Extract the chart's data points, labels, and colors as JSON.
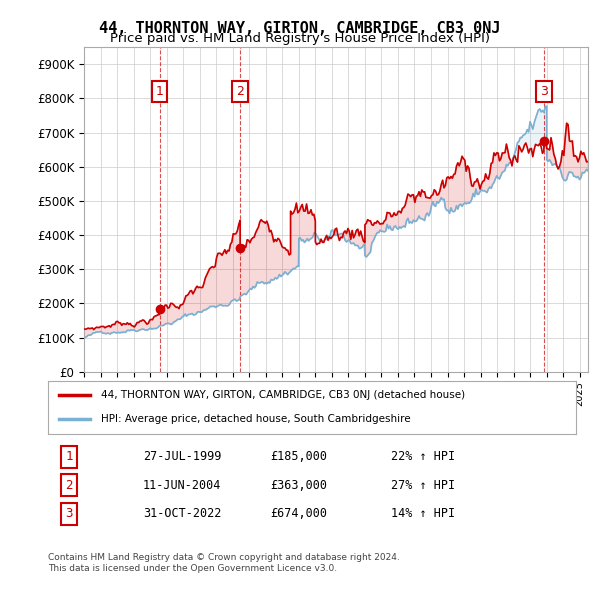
{
  "title": "44, THORNTON WAY, GIRTON, CAMBRIDGE, CB3 0NJ",
  "subtitle": "Price paid vs. HM Land Registry's House Price Index (HPI)",
  "ylabel_ticks": [
    "£0",
    "£100K",
    "£200K",
    "£300K",
    "£400K",
    "£500K",
    "£600K",
    "£700K",
    "£800K",
    "£900K"
  ],
  "ytick_values": [
    0,
    100000,
    200000,
    300000,
    400000,
    500000,
    600000,
    700000,
    800000,
    900000
  ],
  "ylim": [
    0,
    950000
  ],
  "xlim_start": 1995.0,
  "xlim_end": 2025.5,
  "sales": [
    {
      "index": 1,
      "date_label": "27-JUL-1999",
      "date_x": 1999.57,
      "price": 185000,
      "pct": "22%",
      "direction": "↑"
    },
    {
      "index": 2,
      "date_label": "11-JUN-2004",
      "date_x": 2004.45,
      "price": 363000,
      "pct": "27%",
      "direction": "↑"
    },
    {
      "index": 3,
      "date_label": "31-OCT-2022",
      "date_x": 2022.83,
      "price": 674000,
      "pct": "14%",
      "direction": "↑"
    }
  ],
  "red_line_color": "#cc0000",
  "blue_line_color": "#7ab0d4",
  "sale_marker_color": "#cc0000",
  "sale_box_color": "#cc0000",
  "grid_color": "#cccccc",
  "background_color": "#ffffff",
  "legend_label_red": "44, THORNTON WAY, GIRTON, CAMBRIDGE, CB3 0NJ (detached house)",
  "legend_label_blue": "HPI: Average price, detached house, South Cambridgeshire",
  "footnote": "Contains HM Land Registry data © Crown copyright and database right 2024.\nThis data is licensed under the Open Government Licence v3.0.",
  "sale_table": [
    [
      1,
      "27-JUL-1999",
      "£185,000",
      "22% ↑ HPI"
    ],
    [
      2,
      "11-JUN-2004",
      "£363,000",
      "27% ↑ HPI"
    ],
    [
      3,
      "31-OCT-2022",
      "£674,000",
      "14% ↑ HPI"
    ]
  ]
}
